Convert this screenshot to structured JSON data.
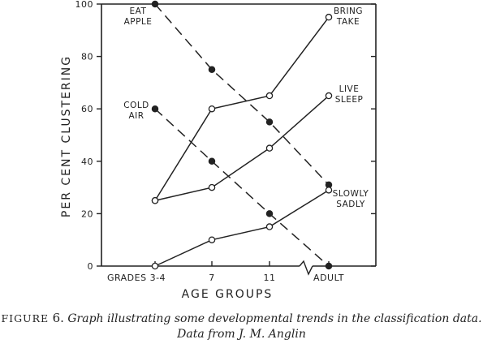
{
  "chart_data": {
    "type": "line",
    "xlabel": "AGE GROUPS",
    "ylabel": "PER CENT CLUSTERING",
    "categories": [
      "GRADES 3-4",
      "7",
      "11",
      "ADULT"
    ],
    "ylim": [
      0,
      100
    ],
    "yticks": [
      0,
      20,
      40,
      60,
      80,
      100
    ],
    "axis_break_between": [
      "11",
      "ADULT"
    ],
    "grid": false,
    "legend": "inline",
    "series": [
      {
        "name": "EAT APPLE",
        "values": [
          100,
          75,
          55,
          31
        ],
        "style": "dashed",
        "marker": "filled",
        "label_lines": [
          "EAT",
          "APPLE"
        ]
      },
      {
        "name": "COLD AIR",
        "values": [
          60,
          40,
          20,
          0
        ],
        "style": "dashed",
        "marker": "filled",
        "label_lines": [
          "COLD",
          "AIR"
        ]
      },
      {
        "name": "BRING TAKE",
        "values": [
          25,
          60,
          65,
          95
        ],
        "style": "solid",
        "marker": "open",
        "label_lines": [
          "BRING",
          "TAKE"
        ]
      },
      {
        "name": "LIVE SLEEP",
        "values": [
          25,
          30,
          45,
          65
        ],
        "style": "solid",
        "marker": "open",
        "label_lines": [
          "LIVE",
          "SLEEP"
        ]
      },
      {
        "name": "SLOWLY SADLY",
        "values": [
          0,
          10,
          15,
          29
        ],
        "style": "solid",
        "marker": "open",
        "label_lines": [
          "SLOWLY",
          "SADLY"
        ]
      }
    ]
  },
  "caption": {
    "label": "FIGURE",
    "number": "6.",
    "text": "Graph illustrating some developmental trends in the classification data. Data from J. M. Anglin"
  },
  "colors": {
    "ink": "#222222",
    "background": "#ffffff"
  }
}
